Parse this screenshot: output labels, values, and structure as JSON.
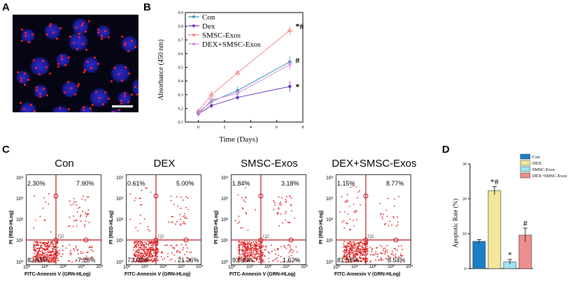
{
  "panels": {
    "A": "A",
    "B": "B",
    "C": "C",
    "D": "D"
  },
  "panelA": {
    "description_icon": "fluorescence-micrograph"
  },
  "chart_data": [
    {
      "type": "line",
      "panel": "B",
      "x": [
        0,
        1,
        3,
        7
      ],
      "xlabel": "Time (Days)",
      "ylabel": "Absorbance (450 nm)",
      "xlim": [
        -1,
        8
      ],
      "ylim": [
        0.1,
        0.9
      ],
      "xticks": [
        "0",
        "2",
        "4",
        "6",
        "8"
      ],
      "yticks": [
        "0.1",
        "0.2",
        "0.3",
        "0.4",
        "0.5",
        "0.6",
        "0.7",
        "0.8",
        "0.9"
      ],
      "series": [
        {
          "name": "Con",
          "values": [
            0.17,
            0.25,
            0.33,
            0.54
          ],
          "color": "#3a8fb0",
          "err": [
            0.02,
            0.03,
            0.03,
            0.04
          ]
        },
        {
          "name": "Dex",
          "values": [
            0.16,
            0.22,
            0.28,
            0.36
          ],
          "color": "#6a2fbf",
          "err": [
            0.02,
            0.02,
            0.02,
            0.04
          ]
        },
        {
          "name": "SMSC-Exos",
          "values": [
            0.18,
            0.3,
            0.46,
            0.77
          ],
          "color": "#f08a8a",
          "err": [
            0.02,
            0.03,
            0.02,
            0.03
          ]
        },
        {
          "name": "DEX+SMSC-Exos",
          "values": [
            0.16,
            0.26,
            0.31,
            0.52
          ],
          "color": "#d78ce0",
          "err": [
            0.02,
            0.03,
            0.02,
            0.04
          ]
        }
      ],
      "annotations": [
        "*#",
        "#",
        "*"
      ]
    },
    {
      "type": "bar",
      "panel": "D",
      "categories": [
        "Con",
        "DEX",
        "SMSC-Exos",
        "DEX+SMSC-Exos"
      ],
      "values": [
        7.8,
        22.3,
        1.9,
        9.6
      ],
      "err": [
        0.5,
        1.2,
        0.7,
        2.0
      ],
      "colors": [
        "#1a7fc4",
        "#f2e79a",
        "#9fe3ef",
        "#ef8e8e"
      ],
      "ylabel": "Apoptotic Rate (%)",
      "ylim": [
        0,
        30
      ],
      "yticks": [
        "0",
        "10",
        "20",
        "30"
      ],
      "annotations": [
        "",
        "*#",
        "*",
        "#"
      ]
    },
    {
      "type": "scatter",
      "panel": "C",
      "xlabel": "FITC-Annexin V (GRN-HLog)",
      "ylabel": "PI (RED-HLog)",
      "ticks": [
        "10⁰",
        "10¹",
        "10²",
        "10³",
        "10⁴"
      ],
      "gate_label": "Q2",
      "plots": [
        {
          "title": "Con",
          "ul": "2.30%",
          "ur": "7.90%",
          "ll": "82.51%",
          "lr": "7.28%"
        },
        {
          "title": "DEX",
          "ul": "0.61%",
          "ur": "5.00%",
          "ll": "73.03%",
          "lr": "21.36%"
        },
        {
          "title": "SMSC-Exos",
          "ul": "1.84%",
          "ur": "3.18%",
          "ll": "93.35%",
          "lr": "1.62%"
        },
        {
          "title": "DEX+SMSC-Exos",
          "ul": "1.15%",
          "ur": "8.77%",
          "ll": "81.55%",
          "lr": "8.54%"
        }
      ]
    }
  ]
}
